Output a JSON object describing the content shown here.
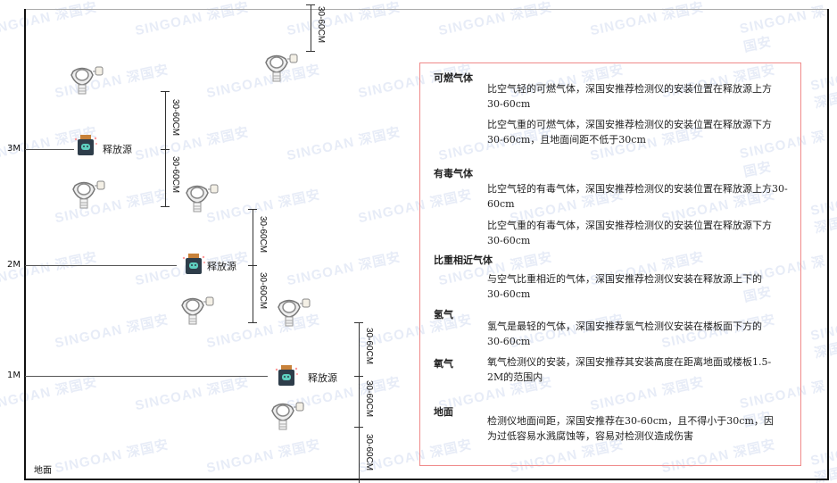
{
  "levels": {
    "m3": "3M",
    "m2": "2M",
    "m1": "1M",
    "ground": "地面"
  },
  "source_label": "释放源",
  "dimension_label": "30-60CM",
  "watermark": "SINGOAN 深国安",
  "colors": {
    "panel_border": "#f08a8a",
    "source_cap": "#c8823a",
    "source_body": "#2e3d4a",
    "source_face": "#5fd0c0"
  },
  "panel": {
    "sections": [
      {
        "title": "可燃气体",
        "paragraphs": [
          "比空气轻的可燃气体，深国安推荐检测仪的安装位置在释放源上方30-60cm",
          "比空气重的可燃气体，深国安推荐检测仪的安装位置在释放源下方30-60cm，且地面间距不低于30cm"
        ]
      },
      {
        "title": "有毒气体",
        "paragraphs": [
          "比空气轻的有毒气体，深国安推荐检测仪的安装位置在释放源上方30-60cm",
          "比空气重的有毒气体，深国安推荐检测仪的安装位置在释放源下方30-60cm"
        ]
      },
      {
        "title": "比重相近气体",
        "paragraphs": [
          "与空气比重相近的气体，深国安推荐检测仪安装在释放源上下的30-60cm"
        ]
      },
      {
        "title": "氢气",
        "paragraphs": [
          "氢气是最轻的气体，深国安推荐氢气检测仪安装在楼板面下方的30-60cm"
        ]
      },
      {
        "title": "氧气",
        "paragraphs": [
          "氧气检测仪的安装，深国安推荐其安装高度在距离地面或楼板1.5-2M的范围内"
        ]
      },
      {
        "title": "地面",
        "paragraphs": [
          "检测仪地面间距，深国安推荐在30-60cm，且不得小于30cm，因为过低容易水溅腐蚀等，容易对检测仪造成伤害"
        ]
      }
    ]
  }
}
